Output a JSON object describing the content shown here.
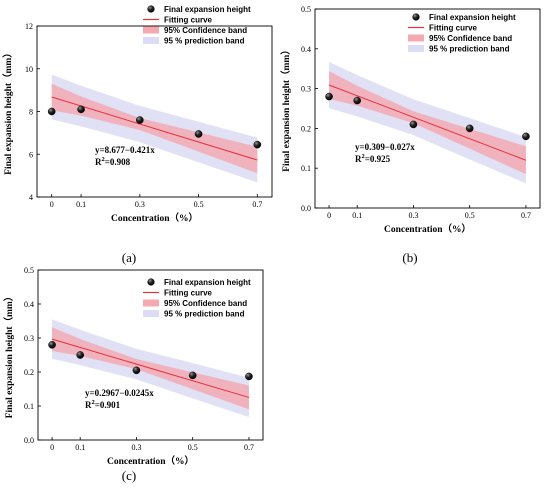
{
  "chart_data": [
    {
      "type": "scatter",
      "panel_label": "(a)",
      "x": [
        0,
        0.1,
        0.3,
        0.5,
        0.7
      ],
      "y": [
        8.0,
        8.1,
        7.6,
        6.95,
        6.45
      ],
      "xticks": [
        "0",
        "0.1",
        "0.3",
        "0.5",
        "0.7"
      ],
      "yticks": [
        "4",
        "6",
        "8",
        "10",
        "12"
      ],
      "xlim": [
        -0.05,
        0.75
      ],
      "ylim": [
        4,
        12
      ],
      "xlabel": "Concentration（%）",
      "ylabel": "Final expansion height（mm）",
      "fit": {
        "intercept": 8.677,
        "slope": -0.421,
        "x_unit_step": 0.1
      },
      "confidence_halfwidth": [
        0.62,
        0.45,
        0.28,
        0.45,
        0.62
      ],
      "prediction_halfwidth": [
        1.05,
        0.95,
        0.85,
        0.95,
        1.05
      ],
      "equation": "y=8.677−0.421x",
      "r2_label": "R",
      "r2_value": "=0.908",
      "legend": [
        "Final expansion height",
        "Fitting curve",
        "95% Confidence band",
        "95 % prediction band"
      ]
    },
    {
      "type": "scatter",
      "panel_label": "(b)",
      "x": [
        0,
        0.1,
        0.3,
        0.5,
        0.7
      ],
      "y": [
        0.28,
        0.27,
        0.21,
        0.2,
        0.18
      ],
      "xticks": [
        "0",
        "0.1",
        "0.3",
        "0.5",
        "0.7"
      ],
      "yticks": [
        "0.0",
        "0.1",
        "0.2",
        "0.3",
        "0.4",
        "0.5"
      ],
      "xlim": [
        -0.05,
        0.75
      ],
      "ylim": [
        0,
        0.5
      ],
      "xlabel": "Concentration（%）",
      "ylabel": "Final expansion height（mm）",
      "fit": {
        "intercept": 0.309,
        "slope": -0.027,
        "x_unit_step": 0.1
      },
      "confidence_halfwidth": [
        0.035,
        0.025,
        0.015,
        0.025,
        0.035
      ],
      "prediction_halfwidth": [
        0.058,
        0.052,
        0.045,
        0.052,
        0.058
      ],
      "equation": "y=0.309−0.027x",
      "r2_label": "R",
      "r2_value": "=0.925",
      "legend": [
        "Final expansion height",
        "Fitting curve",
        "95% Confidence band",
        "95 % prediction band"
      ]
    },
    {
      "type": "scatter",
      "panel_label": "(c)",
      "x": [
        0,
        0.1,
        0.3,
        0.5,
        0.7
      ],
      "y": [
        0.28,
        0.25,
        0.205,
        0.19,
        0.187
      ],
      "xticks": [
        "0",
        "0.1",
        "0.3",
        "0.5",
        "0.7"
      ],
      "yticks": [
        "0.0",
        "0.1",
        "0.2",
        "0.3",
        "0.4",
        "0.5"
      ],
      "xlim": [
        -0.05,
        0.75
      ],
      "ylim": [
        0,
        0.5
      ],
      "xlabel": "Concentration（%）",
      "ylabel": "Final expansion height（mm）",
      "fit": {
        "intercept": 0.2967,
        "slope": -0.0245,
        "x_unit_step": 0.1
      },
      "confidence_halfwidth": [
        0.035,
        0.025,
        0.015,
        0.025,
        0.035
      ],
      "prediction_halfwidth": [
        0.058,
        0.052,
        0.045,
        0.052,
        0.058
      ],
      "equation": "y=0.2967−0.0245x",
      "r2_label": "R",
      "r2_value": "=0.901",
      "legend": [
        "Final expansion height",
        "Fitting curve",
        "95% Confidence band",
        "95 % prediction band"
      ]
    }
  ],
  "colors": {
    "point": "#1a1a1a",
    "fit_line": "#e8303a",
    "confidence_band": "#f4a8b0",
    "prediction_band": "#dcdcf4"
  }
}
